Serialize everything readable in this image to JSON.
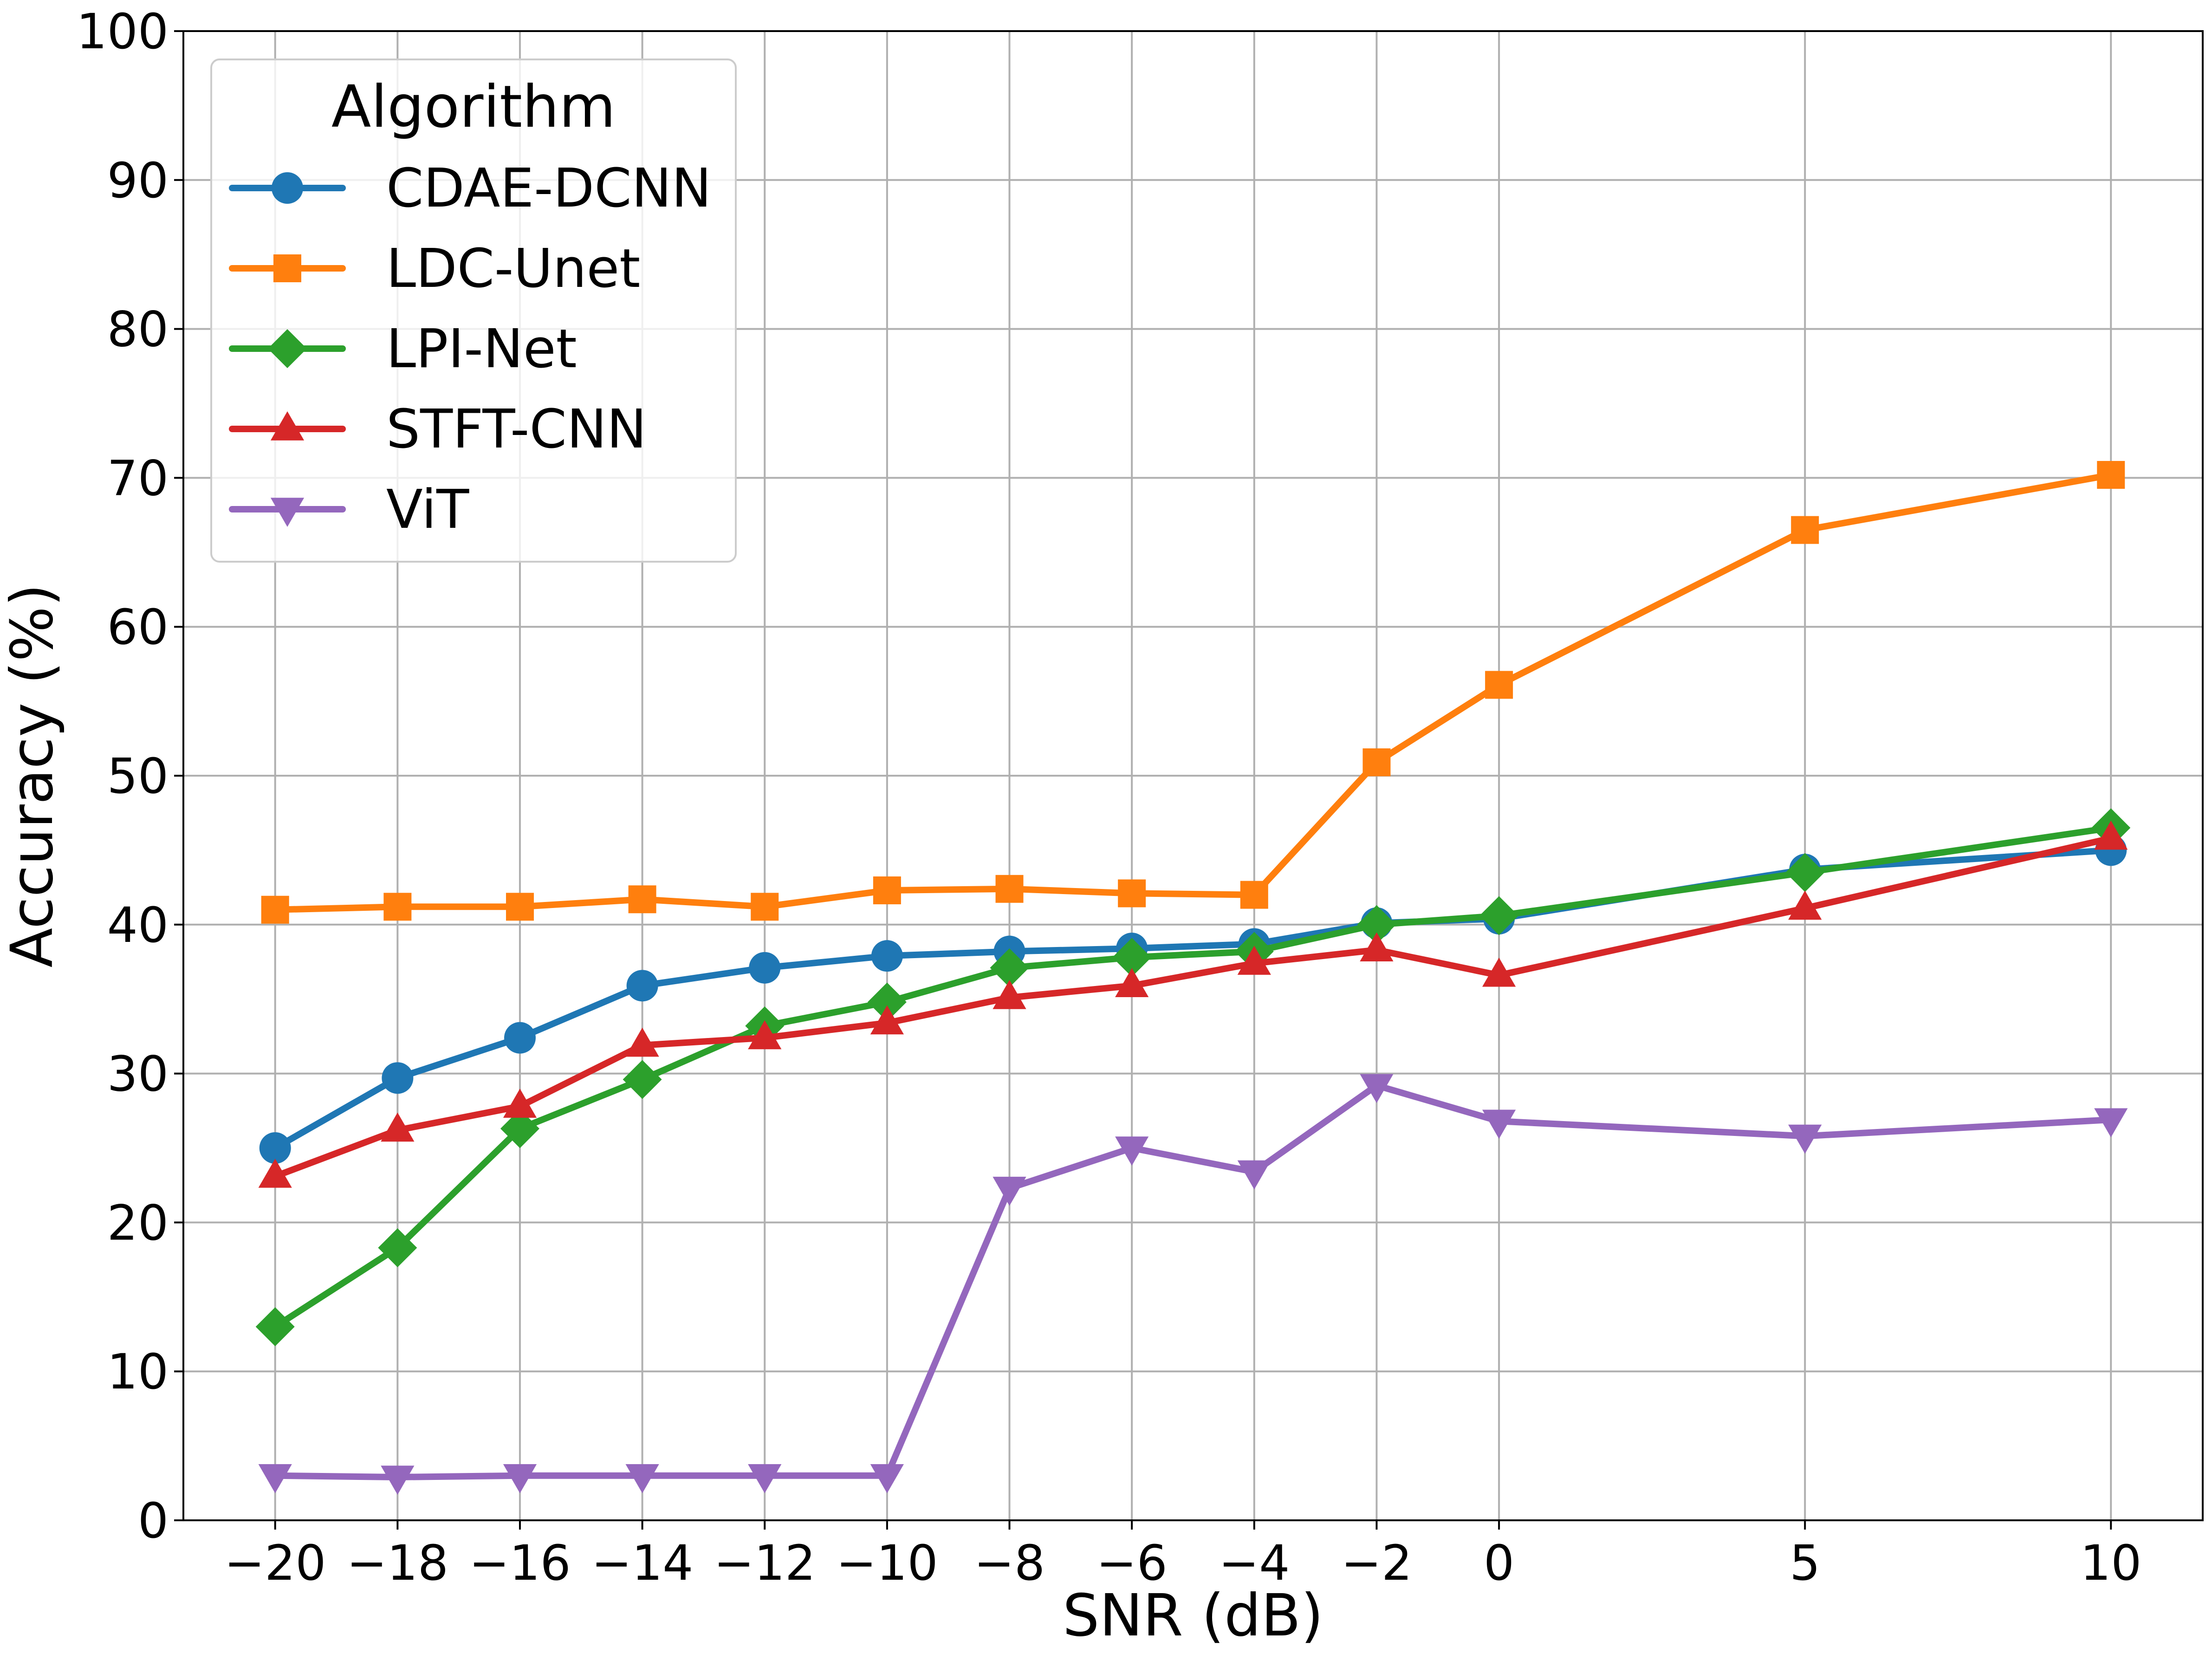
{
  "chart_data": {
    "type": "line",
    "title": "",
    "xlabel": "SNR (dB)",
    "ylabel": "Accuracy (%)",
    "x": [
      -20,
      -18,
      -16,
      -14,
      -12,
      -10,
      -8,
      -6,
      -4,
      -2,
      0,
      5,
      10
    ],
    "x_tick_labels": [
      "−20",
      "−18",
      "−16",
      "−14",
      "−12",
      "−10",
      "−8",
      "−6",
      "−4",
      "−2",
      "0",
      "5",
      "10"
    ],
    "y_ticks": [
      0,
      10,
      20,
      30,
      40,
      50,
      60,
      70,
      80,
      90,
      100
    ],
    "y_tick_labels": [
      "0",
      "10",
      "20",
      "30",
      "40",
      "50",
      "60",
      "70",
      "80",
      "90",
      "100"
    ],
    "xlim": [
      -21.5,
      11.5
    ],
    "ylim": [
      0,
      100
    ],
    "grid": true,
    "legend": {
      "title": "Algorithm",
      "position": "top-left"
    },
    "series": [
      {
        "name": "CDAE-DCNN",
        "color": "#1f77b4",
        "marker": "circle",
        "values": [
          25.0,
          29.7,
          32.4,
          35.9,
          37.1,
          37.9,
          38.2,
          38.4,
          38.7,
          40.1,
          40.4,
          43.7,
          45.0
        ]
      },
      {
        "name": "LDC-Unet",
        "color": "#ff7f0e",
        "marker": "square",
        "values": [
          41.0,
          41.2,
          41.2,
          41.7,
          41.2,
          42.3,
          42.4,
          42.1,
          42.0,
          50.9,
          56.1,
          66.5,
          70.2
        ]
      },
      {
        "name": "LPI-Net",
        "color": "#2ca02c",
        "marker": "diamond",
        "values": [
          13.0,
          18.3,
          26.3,
          29.6,
          33.2,
          34.8,
          37.1,
          37.8,
          38.2,
          40.0,
          40.6,
          43.5,
          46.5
        ]
      },
      {
        "name": "STFT-CNN",
        "color": "#d62728",
        "marker": "triangle-up",
        "values": [
          23.1,
          26.2,
          27.8,
          31.9,
          32.4,
          33.4,
          35.1,
          35.9,
          37.4,
          38.3,
          36.6,
          41.1,
          45.8
        ]
      },
      {
        "name": "ViT",
        "color": "#9467bd",
        "marker": "triangle-down",
        "values": [
          3.0,
          2.9,
          3.0,
          3.0,
          3.0,
          3.0,
          22.3,
          25.0,
          23.4,
          29.2,
          26.8,
          25.8,
          26.9
        ]
      }
    ]
  }
}
